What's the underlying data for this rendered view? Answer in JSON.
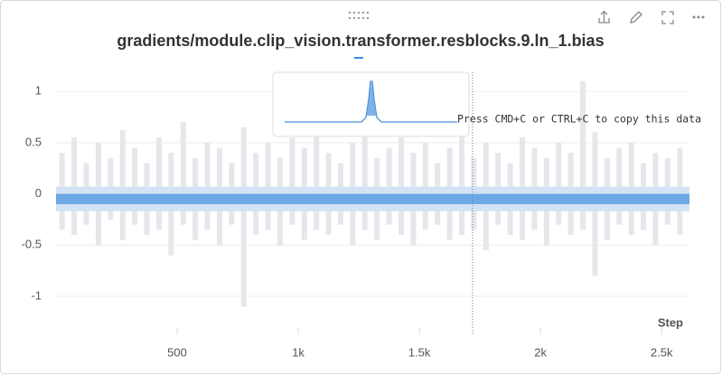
{
  "chart_data": {
    "type": "distribution",
    "title": "gradients/module.clip_vision.transformer.resblocks.9.ln_1.bias",
    "x_label": "Step",
    "tooltip": "Press CMD+C or CTRL+C to copy this data",
    "x": [
      25,
      75,
      125,
      175,
      225,
      275,
      325,
      375,
      425,
      475,
      525,
      575,
      625,
      675,
      725,
      775,
      825,
      875,
      925,
      975,
      1025,
      1075,
      1125,
      1175,
      1225,
      1275,
      1325,
      1375,
      1425,
      1475,
      1525,
      1575,
      1625,
      1675,
      1725,
      1775,
      1825,
      1875,
      1925,
      1975,
      2025,
      2075,
      2125,
      2175,
      2225,
      2275,
      2325,
      2375,
      2425,
      2475,
      2525,
      2575
    ],
    "series": [
      {
        "color": "#e6e7ec",
        "low": [
          -0.35,
          -0.4,
          -0.3,
          -0.5,
          -0.25,
          -0.45,
          -0.3,
          -0.4,
          -0.35,
          -0.6,
          -0.3,
          -0.45,
          -0.35,
          -0.5,
          -0.3,
          -1.1,
          -0.4,
          -0.35,
          -0.5,
          -0.3,
          -0.45,
          -0.35,
          -0.4,
          -0.3,
          -0.5,
          -0.35,
          -0.45,
          -0.3,
          -0.4,
          -0.5,
          -0.35,
          -0.3,
          -0.45,
          -0.4,
          -0.35,
          -0.55,
          -0.3,
          -0.4,
          -0.45,
          -0.35,
          -0.5,
          -0.3,
          -0.4,
          -0.35,
          -0.8,
          -0.45,
          -0.3,
          -0.4,
          -0.35,
          -0.5,
          -0.3,
          -0.4
        ],
        "high": [
          0.4,
          0.55,
          0.3,
          0.5,
          0.35,
          0.62,
          0.45,
          0.3,
          0.55,
          0.4,
          0.7,
          0.35,
          0.5,
          0.45,
          0.3,
          0.65,
          0.4,
          0.5,
          0.35,
          0.55,
          0.45,
          0.7,
          0.4,
          0.3,
          0.5,
          0.6,
          0.35,
          0.45,
          0.55,
          0.4,
          0.5,
          0.3,
          0.45,
          0.65,
          0.35,
          0.5,
          0.4,
          0.3,
          0.55,
          0.45,
          0.35,
          0.5,
          0.4,
          1.1,
          0.6,
          0.35,
          0.45,
          0.5,
          0.3,
          0.4,
          0.35,
          0.45
        ]
      },
      {
        "color": "#d3e3f4",
        "low": -0.17,
        "high": 0.07
      },
      {
        "color": "#5b9ee0",
        "low": -0.1,
        "high": 0
      }
    ],
    "xlim": [
      0,
      2615
    ],
    "ylim": [
      -1.37,
      1.23
    ],
    "xticks": [
      500,
      {
        "value": 1000,
        "label": "1k"
      },
      {
        "value": 1500,
        "label": "1.5k"
      },
      {
        "value": 2000,
        "label": "2k"
      },
      {
        "value": 2500,
        "label": "2.5k"
      }
    ],
    "yticks": [
      1,
      0.5,
      0,
      -0.5,
      -1
    ],
    "grid": true
  }
}
